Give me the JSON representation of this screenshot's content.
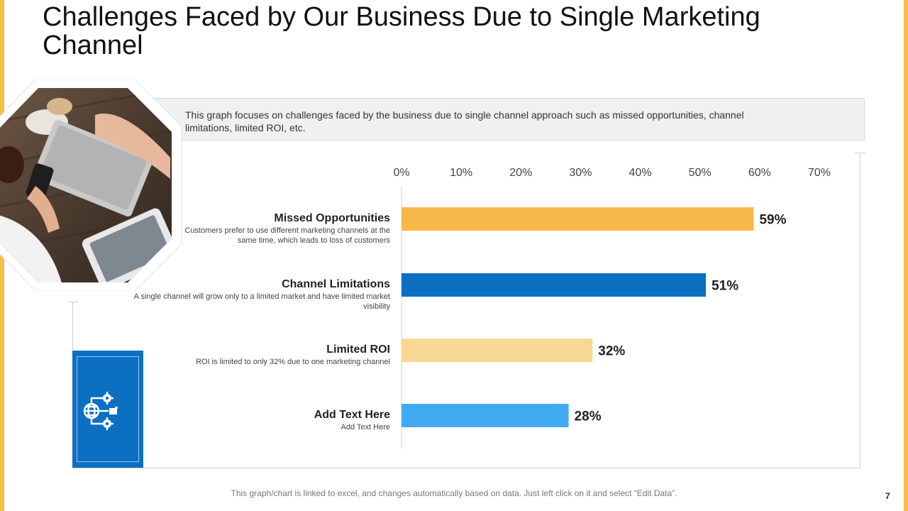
{
  "slide": {
    "title": "Challenges Faced by Our Business Due to Single Marketing Channel",
    "description": "This graph focuses on challenges faced by the business due to single channel approach such as missed opportunities, channel limitations, limited ROI, etc.",
    "footnote": "This graph/chart is linked to excel, and changes automatically based on data. Just left click on it and select “Edit Data”.",
    "page_number": "7",
    "photo_icon": "workspace-photo",
    "panel_icon": "network-globe-gears-icon",
    "colors": {
      "accent": "#f6bd47",
      "panel": "#0b6fc2"
    }
  },
  "chart_data": {
    "type": "bar",
    "orientation": "horizontal",
    "title": "",
    "xlim": [
      0,
      70
    ],
    "ticks": [
      "0%",
      "10%",
      "20%",
      "30%",
      "40%",
      "50%",
      "60%",
      "70%"
    ],
    "tick_values": [
      0,
      10,
      20,
      30,
      40,
      50,
      60,
      70
    ],
    "categories": [
      "Missed Opportunities",
      "Channel Limitations",
      "Limited ROI",
      "Add Text Here"
    ],
    "descriptions": [
      "Customers prefer to use different marketing channels at the same time, which leads to loss of customers",
      "A single channel will grow only to a limited market and have limited market visibility",
      "ROI is limited to only 32% due to one marketing channel",
      "Add Text Here"
    ],
    "values": [
      59,
      51,
      32,
      28
    ],
    "value_labels": [
      "59%",
      "51%",
      "32%",
      "28%"
    ],
    "colors": [
      "#f5b94a",
      "#0b6fc2",
      "#f8d795",
      "#41aaf2"
    ]
  }
}
